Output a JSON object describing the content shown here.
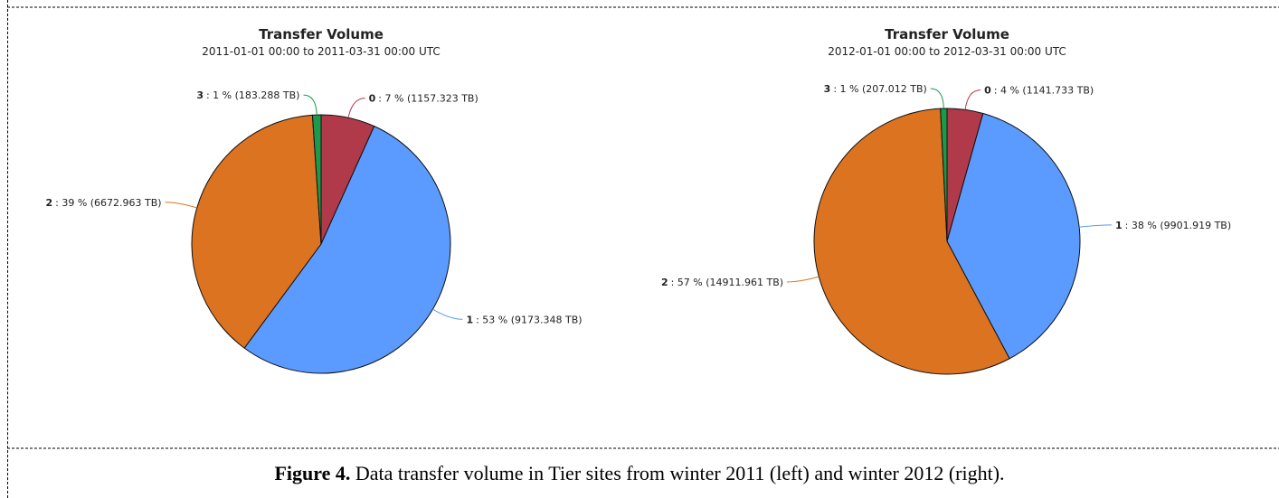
{
  "chart_data": [
    {
      "type": "pie",
      "title": "Transfer Volume",
      "subtitle": "2011-01-01 00:00 to 2011-03-31 00:00 UTC",
      "categories": [
        "0",
        "1",
        "2",
        "3"
      ],
      "values": [
        1157.323,
        9173.348,
        6672.963,
        183.288
      ],
      "value_labels": [
        ": 7 % (1157.323 TB)",
        ": 53 % (9173.348 TB)",
        ": 39 % (6672.963 TB)",
        ": 1 % (183.288 TB)"
      ],
      "colors": [
        "#b0394a",
        "#5b9bff",
        "#dc7320",
        "#1a9a4a"
      ]
    },
    {
      "type": "pie",
      "title": "Transfer Volume",
      "subtitle": "2012-01-01 00:00 to 2012-03-31 00:00 UTC",
      "categories": [
        "0",
        "1",
        "2",
        "3"
      ],
      "values": [
        1141.733,
        9901.919,
        14911.961,
        207.012
      ],
      "value_labels": [
        ": 4 % (1141.733 TB)",
        ": 38 % (9901.919 TB)",
        ": 57 % (14911.961 TB)",
        ": 1 % (207.012 TB)"
      ],
      "colors": [
        "#b0394a",
        "#5b9bff",
        "#dc7320",
        "#1a9a4a"
      ]
    }
  ],
  "caption": {
    "label": "Figure 4.",
    "text": "Data transfer volume in Tier sites from winter 2011 (left) and winter 2012 (right)."
  }
}
